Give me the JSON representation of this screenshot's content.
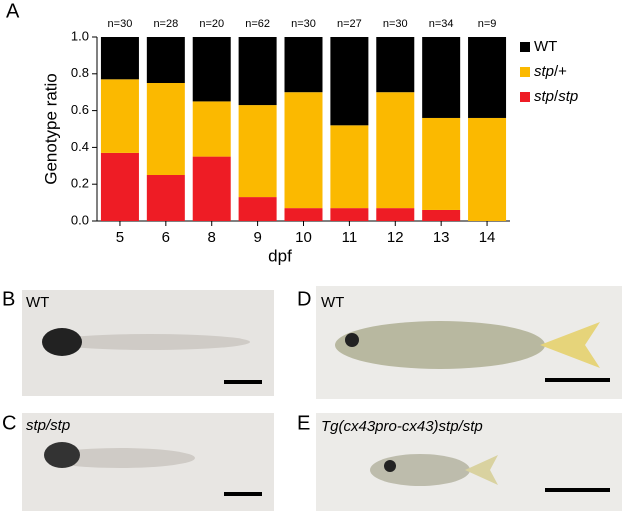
{
  "chart_data": {
    "type": "stacked_bar",
    "panel_label": "A",
    "x_label": "dpf",
    "y_label": "Genotype ratio",
    "categories": [
      "5",
      "6",
      "8",
      "9",
      "10",
      "11",
      "12",
      "13",
      "14"
    ],
    "annotations": [
      "n=30",
      "n=28",
      "n=20",
      "n=62",
      "n=30",
      "n=27",
      "n=30",
      "n=34",
      "n=9"
    ],
    "series": [
      {
        "name": "WT",
        "color": "#000000",
        "values": [
          0.23,
          0.25,
          0.35,
          0.37,
          0.3,
          0.48,
          0.3,
          0.44,
          0.44
        ]
      },
      {
        "name": "stp/+",
        "color": "#fbb900",
        "values": [
          0.4,
          0.5,
          0.3,
          0.5,
          0.63,
          0.45,
          0.63,
          0.5,
          0.56
        ]
      },
      {
        "name": "stp/stp",
        "color": "#ee1c25",
        "values": [
          0.37,
          0.25,
          0.35,
          0.13,
          0.07,
          0.07,
          0.07,
          0.06,
          0
        ]
      }
    ],
    "ylim": [
      0,
      1
    ],
    "yticks": [
      {
        "value": 0,
        "label": "0.0"
      },
      {
        "value": 0.2,
        "label": "0.2"
      },
      {
        "value": 0.4,
        "label": "0.4"
      },
      {
        "value": 0.6,
        "label": "0.6"
      },
      {
        "value": 0.8,
        "label": "0.8"
      },
      {
        "value": 1,
        "label": "1.0"
      }
    ],
    "legend": "right"
  },
  "panels": [
    {
      "label": "B",
      "caption": "WT"
    },
    {
      "label": "C",
      "caption": "stp/stp"
    },
    {
      "label": "D",
      "caption": "WT"
    },
    {
      "label": "E",
      "caption": "Tg(cx43pro-cx43)stp/stp"
    }
  ]
}
